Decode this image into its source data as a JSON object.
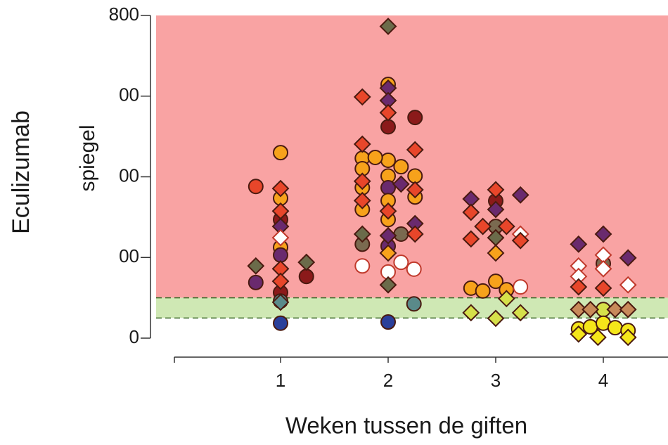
{
  "chart_data": {
    "type": "scatter",
    "y_label_lines": [
      "Eculizumab",
      "spiegel"
    ],
    "x_label": "Weken tussen de giften",
    "xlim": [
      0,
      4.6
    ],
    "ylim": [
      0,
      800
    ],
    "xticks": [
      1,
      2,
      3,
      4
    ],
    "yticks": [
      0,
      {
        "value": 200,
        "label": "00"
      },
      {
        "value": 400,
        "label": "00"
      },
      {
        "value": 600,
        "label": "00"
      },
      800
    ],
    "bands": [
      {
        "from": 100,
        "to": 800,
        "color": "#f9a3a3"
      },
      {
        "from": 50,
        "to": 100,
        "color": "#cfe8b4"
      }
    ],
    "dashed_lines": [
      50,
      100
    ],
    "series": [
      {
        "marker": "circle",
        "x": [
          0.77,
          1.0,
          1.0,
          1.0,
          1.0,
          1.0,
          0.77,
          1.24,
          1.0,
          1.0,
          1.0,
          2.0,
          2.0,
          2.25,
          1.76,
          2.0,
          1.88,
          2.12,
          1.76,
          2.0,
          2.25,
          1.76,
          2.0,
          1.76,
          2.0,
          2.25,
          2.0,
          2.12,
          2.0,
          1.76,
          2.0,
          2.12,
          2.24,
          2.24,
          2.0,
          1.76,
          3.0,
          3.0,
          2.77,
          2.88,
          3.0,
          3.1,
          3.23,
          4.0,
          4.0,
          3.77,
          3.88,
          4.0,
          4.11,
          4.23
        ],
        "values": [
          376,
          460,
          347,
          225,
          294,
          206,
          138,
          153,
          113,
          92,
          37,
          629,
          524,
          547,
          446,
          441,
          448,
          425,
          420,
          402,
          402,
          373,
          373,
          319,
          341,
          350,
          294,
          258,
          228,
          179,
          164,
          188,
          171,
          85,
          40,
          233,
          340,
          277,
          124,
          117,
          141,
          120,
          127,
          185,
          71,
          23,
          28,
          37,
          26,
          19
        ],
        "colors": [
          "#e8462a",
          "#f7a21b",
          "#f7a21b",
          "#f7a21b",
          "#8b1a1a",
          "#6a2a6e",
          "#6a2a6e",
          "#8b1a1a",
          "#8b1a1a",
          "#5a8a8a",
          "#2a3f9a",
          "#f7a21b",
          "#8b1a1a",
          "#8b1a1a",
          "#f7a21b",
          "#f7a21b",
          "#f7a21b",
          "#f7a21b",
          "#f7a21b",
          "#f7a21b",
          "#f7a21b",
          "#f7a21b",
          "#6a2a6e",
          "#f7a21b",
          "#f7a21b",
          "#f7a21b",
          "#f7a21b",
          "#7a6a50",
          "#6a2a6e",
          "#ffffff",
          "#ffffff",
          "#ffffff",
          "#ffffff",
          "#5a8a8a",
          "#2a3f9a",
          "#7a6a50",
          "#8b1a1a",
          "#7a6a50",
          "#f7a21b",
          "#f7a21b",
          "#f7a21b",
          "#f7a21b",
          "#ffffff",
          "#7a6a50",
          "#d6e04a",
          "#f5e61a",
          "#f5e61a",
          "#f5e61a",
          "#f5e61a",
          "#f5e61a"
        ]
      },
      {
        "marker": "diamond",
        "x": [
          1.0,
          1.0,
          1.0,
          1.0,
          1.0,
          0.77,
          1.24,
          1.0,
          1.0,
          2.0,
          1.76,
          2.0,
          2.0,
          2.0,
          1.76,
          2.25,
          1.76,
          2.25,
          2.12,
          1.76,
          2.0,
          2.25,
          1.76,
          2.0,
          2.25,
          2.0,
          2.0,
          2.77,
          3.0,
          3.23,
          2.77,
          3.0,
          2.88,
          3.1,
          3.23,
          2.77,
          3.0,
          3.23,
          3.0,
          2.77,
          3.0,
          3.23,
          3.1,
          3.77,
          4.0,
          4.23,
          3.77,
          3.77,
          4.0,
          4.0,
          4.23,
          3.77,
          4.0,
          3.77,
          3.88,
          4.11,
          4.23,
          3.77,
          3.95,
          4.23
        ],
        "values": [
          371,
          315,
          277,
          249,
          172,
          179,
          188,
          141,
          89,
          773,
          598,
          620,
          589,
          559,
          481,
          467,
          389,
          368,
          382,
          341,
          315,
          284,
          258,
          254,
          258,
          211,
          132,
          345,
          368,
          355,
          312,
          319,
          277,
          277,
          258,
          246,
          249,
          242,
          211,
          63,
          49,
          63,
          98,
          233,
          258,
          199,
          179,
          153,
          206,
          172,
          132,
          127,
          124,
          71,
          71,
          71,
          71,
          10,
          2,
          2
        ],
        "colors": [
          "#e8462a",
          "#e8462a",
          "#6a2a6e",
          "#ffffff",
          "#e8462a",
          "#6b6b4a",
          "#6b6b4a",
          "#e8462a",
          "#5a8a8a",
          "#6b6b4a",
          "#e8462a",
          "#6a2a6e",
          "#6a2a6e",
          "#e8462a",
          "#e8462a",
          "#e8462a",
          "#e8462a",
          "#e8462a",
          "#6a2a6e",
          "#e8462a",
          "#e8462a",
          "#6a2a6e",
          "#6b6b4a",
          "#6a2a6e",
          "#e8462a",
          "#f7a21b",
          "#6b6b4a",
          "#6a2a6e",
          "#e8462a",
          "#6a2a6e",
          "#e8462a",
          "#6a2a6e",
          "#e8462a",
          "#e8462a",
          "#ffffff",
          "#e8462a",
          "#6b6b4a",
          "#e8462a",
          "#f7a21b",
          "#d6e04a",
          "#d6e04a",
          "#d6e04a",
          "#d6e04a",
          "#6a2a6e",
          "#6a2a6e",
          "#6a2a6e",
          "#ffffff",
          "#ffffff",
          "#ffffff",
          "#ffffff",
          "#ffffff",
          "#e8462a",
          "#e8462a",
          "#c88a5a",
          "#c88a5a",
          "#c88a5a",
          "#c88a5a",
          "#f5e61a",
          "#f5e61a",
          "#f5e61a"
        ]
      }
    ]
  }
}
